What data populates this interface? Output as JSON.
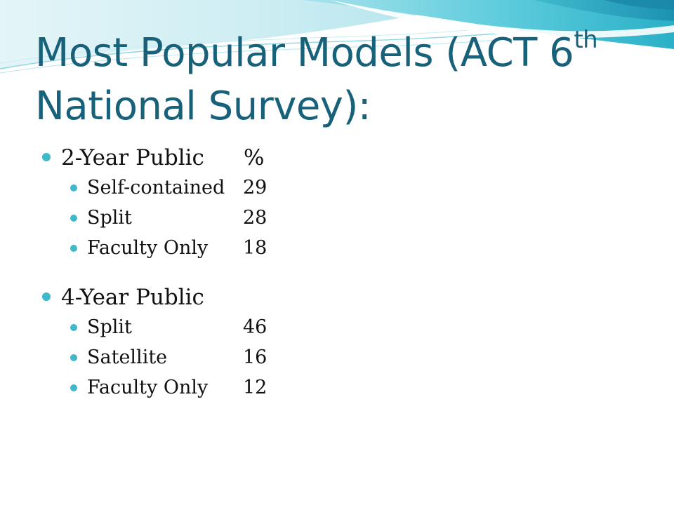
{
  "slide": {
    "title_main": "Most Popular Models (ACT 6",
    "title_sup": "th",
    "title_rest": "National Survey):"
  },
  "sections": [
    {
      "heading": "2-Year Public",
      "heading_value": "%",
      "items": [
        {
          "label": "Self-contained",
          "value": "29"
        },
        {
          "label": "Split",
          "value": "28"
        },
        {
          "label": "Faculty Only",
          "value": "18"
        }
      ]
    },
    {
      "heading": "4-Year Public",
      "heading_value": "",
      "items": [
        {
          "label": "Split",
          "value": "46"
        },
        {
          "label": "Satellite",
          "value": "16"
        },
        {
          "label": "Faculty Only",
          "value": "12"
        }
      ]
    }
  ],
  "colors": {
    "title": "#17627a",
    "bullet": "#3fb8c9",
    "wave_light": "#cdeef3",
    "wave_mid": "#6fd0de",
    "wave_dark": "#2aa6bd"
  }
}
